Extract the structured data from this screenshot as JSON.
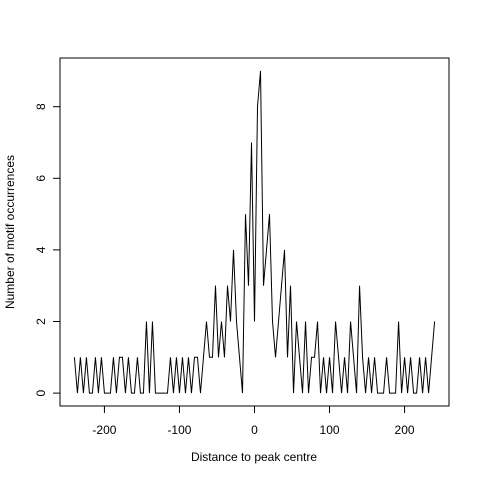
{
  "chart_data": {
    "type": "line",
    "xlabel": "Distance to peak centre",
    "ylabel": "Number of motif occurrences",
    "color": "#000000",
    "xlim": [
      -259.2,
      259.2
    ],
    "ylim": [
      -0.36,
      9.36
    ],
    "xticks": [
      -200,
      -100,
      0,
      100,
      200
    ],
    "yticks": [
      0,
      2,
      4,
      6,
      8
    ],
    "x": [
      -240,
      -236,
      -232,
      -228,
      -224,
      -220,
      -216,
      -212,
      -208,
      -204,
      -200,
      -196,
      -192,
      -188,
      -184,
      -180,
      -176,
      -172,
      -168,
      -164,
      -160,
      -156,
      -152,
      -148,
      -144,
      -140,
      -136,
      -132,
      -128,
      -124,
      -120,
      -116,
      -112,
      -108,
      -104,
      -100,
      -96,
      -92,
      -88,
      -84,
      -80,
      -76,
      -72,
      -68,
      -64,
      -60,
      -56,
      -52,
      -48,
      -44,
      -40,
      -36,
      -32,
      -28,
      -24,
      -20,
      -16,
      -12,
      -8,
      -4,
      0,
      4,
      8,
      12,
      16,
      20,
      24,
      28,
      32,
      36,
      40,
      44,
      48,
      52,
      56,
      60,
      64,
      68,
      72,
      76,
      80,
      84,
      88,
      92,
      96,
      100,
      104,
      108,
      112,
      116,
      120,
      124,
      128,
      132,
      136,
      140,
      144,
      148,
      152,
      156,
      160,
      164,
      168,
      172,
      176,
      180,
      184,
      188,
      192,
      196,
      200,
      204,
      208,
      212,
      216,
      220,
      224,
      228,
      232,
      236,
      240
    ],
    "values": [
      1,
      0,
      1,
      0,
      1,
      0,
      0,
      1,
      0,
      1,
      0,
      0,
      0,
      1,
      0,
      1,
      1,
      0,
      1,
      0,
      0,
      1,
      0,
      0,
      2,
      0,
      2,
      0,
      0,
      0,
      0,
      0,
      1,
      0,
      1,
      0,
      1,
      0,
      1,
      0,
      1,
      1,
      0,
      1,
      2,
      1,
      1,
      3,
      1,
      2,
      1,
      3,
      2,
      4,
      2,
      1,
      0,
      5,
      3,
      7,
      2,
      8,
      9,
      3,
      4,
      5,
      2,
      1,
      2,
      3,
      4,
      1,
      3,
      0,
      2,
      1,
      0,
      2,
      0,
      1,
      1,
      2,
      0,
      1,
      0,
      1,
      0,
      2,
      1,
      0,
      1,
      0,
      2,
      1,
      0,
      3,
      1,
      0,
      1,
      0,
      1,
      0,
      0,
      0,
      1,
      0,
      0,
      0,
      2,
      0,
      1,
      0,
      1,
      0,
      0,
      1,
      0,
      1,
      0,
      1,
      2
    ]
  }
}
